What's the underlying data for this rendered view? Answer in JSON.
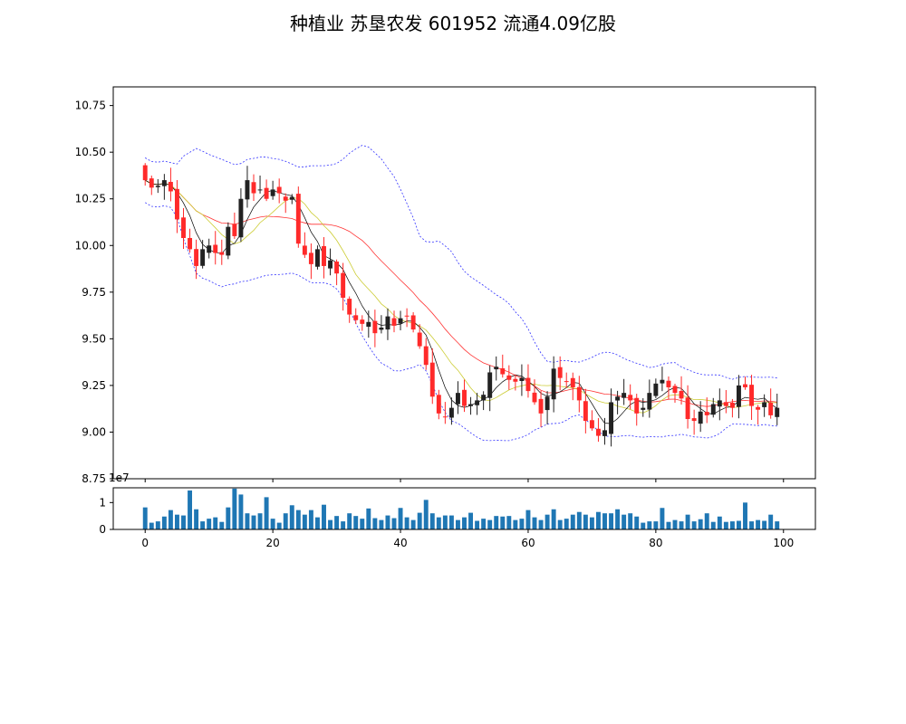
{
  "title": "种植业 苏垦农发 601952 流通4.09亿股",
  "colors": {
    "up": "#ff2a2a",
    "down": "#222222",
    "ma_short": "#000000",
    "ma_mid": "#cccc33",
    "ma_long": "#ff3333",
    "band": "#3333ff",
    "volume": "#1f77b4"
  },
  "chart_data": [
    {
      "type": "candlestick",
      "ylim": [
        8.75,
        10.85
      ],
      "yticks": [
        "8.75",
        "9.00",
        "9.25",
        "9.50",
        "9.75",
        "10.00",
        "10.25",
        "10.50",
        "10.75"
      ],
      "xlim": [
        -5,
        105
      ],
      "xticks": [
        0,
        20,
        40,
        60,
        80,
        100
      ],
      "close": [
        10.35,
        10.31,
        10.32,
        10.35,
        10.29,
        10.14,
        10.04,
        9.98,
        9.89,
        9.98,
        10.0,
        9.96,
        9.95,
        10.1,
        10.05,
        10.25,
        10.35,
        10.28,
        10.3,
        10.25,
        10.3,
        10.28,
        10.24,
        10.26,
        10.01,
        9.95,
        9.9,
        9.98,
        9.89,
        9.92,
        9.85,
        9.72,
        9.63,
        9.6,
        9.58,
        9.59,
        9.53,
        9.56,
        9.62,
        9.57,
        9.61,
        9.62,
        9.55,
        9.46,
        9.36,
        9.19,
        9.1,
        9.08,
        9.13,
        9.21,
        9.14,
        9.15,
        9.17,
        9.2,
        9.32,
        9.35,
        9.31,
        9.28,
        9.27,
        9.29,
        9.22,
        9.16,
        9.1,
        9.19,
        9.34,
        9.29,
        9.27,
        9.24,
        9.17,
        9.06,
        9.02,
        8.98,
        9.01,
        9.16,
        9.19,
        9.21,
        9.17,
        9.1,
        9.13,
        9.21,
        9.26,
        9.28,
        9.24,
        9.21,
        9.18,
        9.07,
        9.06,
        9.11,
        9.09,
        9.15,
        9.17,
        9.14,
        9.13,
        9.25,
        9.24,
        9.14,
        9.12,
        9.16,
        9.09,
        9.13
      ]
    },
    {
      "type": "bar",
      "ylabel": "",
      "scale_label": "1e7",
      "ylim": [
        0,
        1.55
      ],
      "yticks": [
        "0",
        "1"
      ],
      "xticks": [
        "0",
        "20",
        "40",
        "60",
        "80",
        "100"
      ],
      "values": [
        0.82,
        0.25,
        0.3,
        0.48,
        0.72,
        0.55,
        0.52,
        1.45,
        0.75,
        0.3,
        0.4,
        0.45,
        0.28,
        0.82,
        1.52,
        1.3,
        0.6,
        0.52,
        0.6,
        1.2,
        0.4,
        0.25,
        0.6,
        0.9,
        0.72,
        0.55,
        0.72,
        0.45,
        0.92,
        0.35,
        0.5,
        0.3,
        0.6,
        0.5,
        0.4,
        0.78,
        0.42,
        0.35,
        0.52,
        0.42,
        0.8,
        0.45,
        0.35,
        0.62,
        1.1,
        0.6,
        0.45,
        0.52,
        0.52,
        0.35,
        0.45,
        0.62,
        0.32,
        0.4,
        0.35,
        0.5,
        0.48,
        0.5,
        0.35,
        0.4,
        0.72,
        0.45,
        0.35,
        0.55,
        0.75,
        0.35,
        0.4,
        0.55,
        0.65,
        0.55,
        0.45,
        0.65,
        0.6,
        0.6,
        0.75,
        0.55,
        0.6,
        0.48,
        0.25,
        0.3,
        0.3,
        0.8,
        0.28,
        0.35,
        0.3,
        0.55,
        0.3,
        0.38,
        0.6,
        0.28,
        0.48,
        0.28,
        0.3,
        0.32,
        1.0,
        0.3,
        0.35,
        0.32,
        0.55,
        0.3
      ]
    }
  ]
}
